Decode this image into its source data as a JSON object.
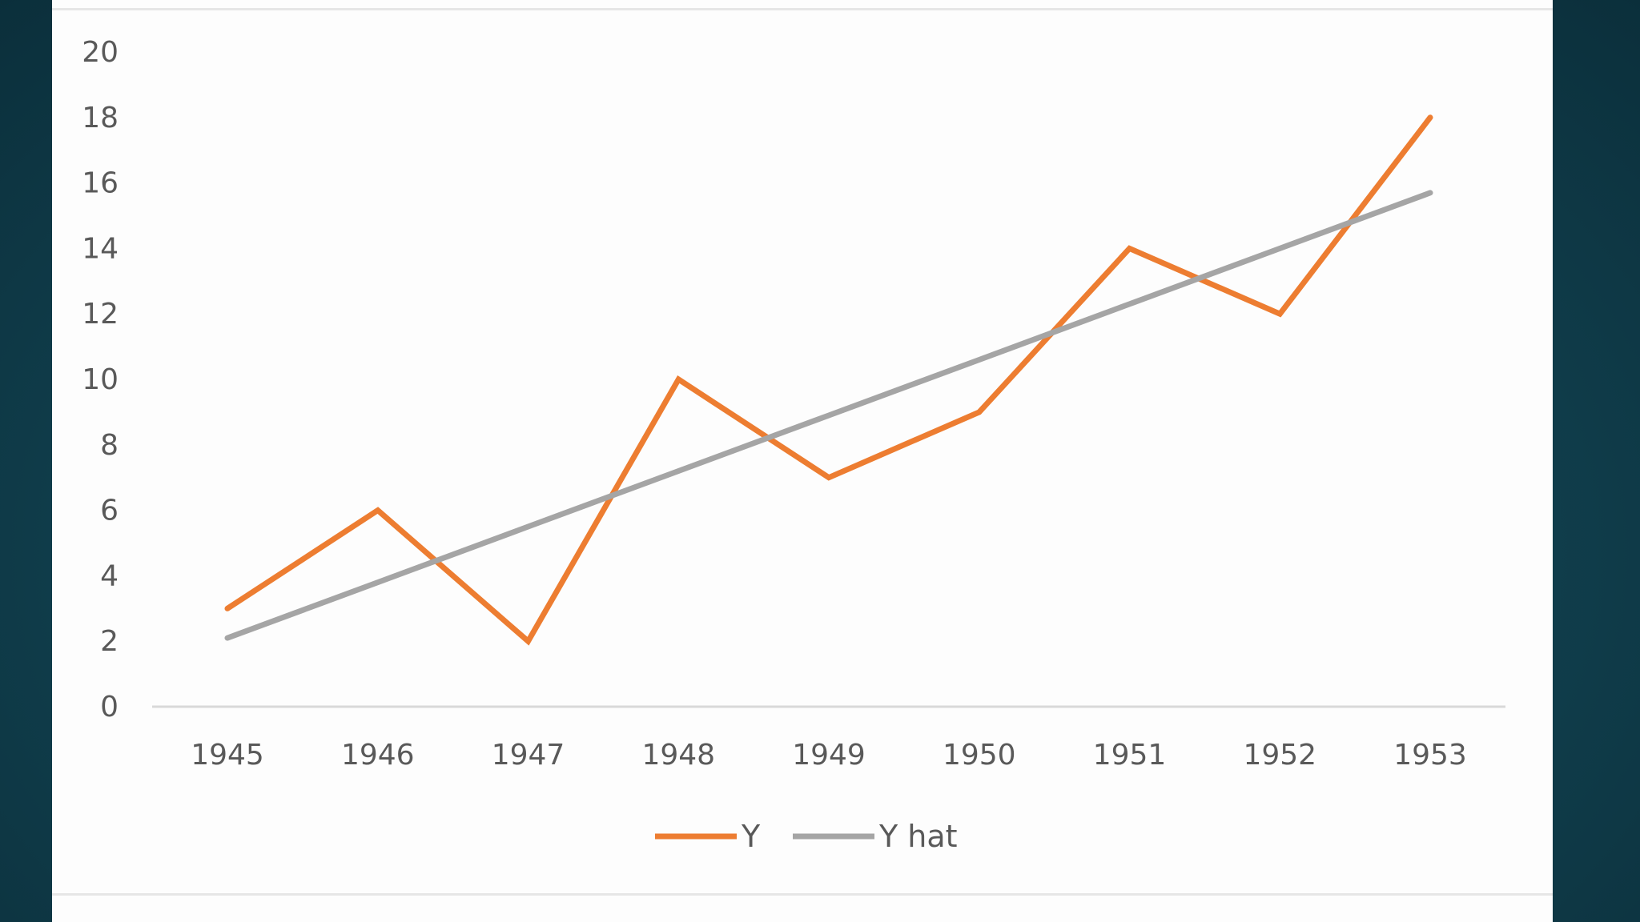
{
  "chart_data": {
    "type": "line",
    "title": "",
    "xlabel": "",
    "ylabel": "",
    "categories": [
      "1945",
      "1946",
      "1947",
      "1948",
      "1949",
      "1950",
      "1951",
      "1952",
      "1953"
    ],
    "ylim": [
      0,
      20
    ],
    "yticks": [
      "0",
      "2",
      "4",
      "6",
      "8",
      "10",
      "12",
      "14",
      "16",
      "18",
      "20"
    ],
    "grid": false,
    "legend_position": "bottom",
    "series": [
      {
        "name": "Y",
        "color": "#ed7d31",
        "values": [
          3,
          6,
          2,
          10,
          7,
          9,
          14,
          12,
          18
        ]
      },
      {
        "name": "Y hat",
        "color": "#a5a5a5",
        "values": [
          2.1,
          3.8,
          5.5,
          7.2,
          8.9,
          10.6,
          12.3,
          14.0,
          15.7
        ]
      }
    ]
  }
}
